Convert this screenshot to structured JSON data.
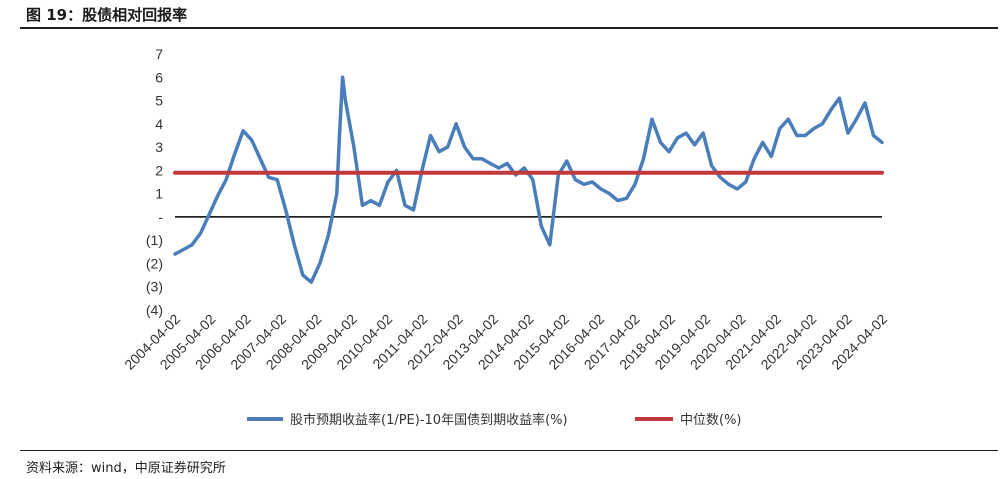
{
  "header": {
    "title": "图 19：股债相对回报率"
  },
  "footer": {
    "source": "资料来源：wind，中原证券研究所"
  },
  "colors": {
    "series_line": "#4a7ebb",
    "median_line": "#c0393b",
    "zero_line": "#000000"
  },
  "chart_data": {
    "type": "line",
    "title": "",
    "xlabel": "",
    "ylabel": "",
    "ylim": [
      -4,
      7
    ],
    "y_ticks": [
      {
        "value": 7,
        "label": "7"
      },
      {
        "value": 6,
        "label": "6"
      },
      {
        "value": 5,
        "label": "5"
      },
      {
        "value": 4,
        "label": "4"
      },
      {
        "value": 3,
        "label": "3"
      },
      {
        "value": 2,
        "label": "2"
      },
      {
        "value": 1,
        "label": "1"
      },
      {
        "value": 0,
        "label": "-"
      },
      {
        "value": -1,
        "label": "(1)"
      },
      {
        "value": -2,
        "label": "(2)"
      },
      {
        "value": -3,
        "label": "(3)"
      },
      {
        "value": -4,
        "label": "(4)"
      }
    ],
    "x_ticks": [
      "2004-04-02",
      "2005-04-02",
      "2006-04-02",
      "2007-04-02",
      "2008-04-02",
      "2009-04-02",
      "2010-04-02",
      "2011-04-02",
      "2012-04-02",
      "2013-04-02",
      "2014-04-02",
      "2015-04-02",
      "2016-04-02",
      "2017-04-02",
      "2018-04-02",
      "2019-04-02",
      "2020-04-02",
      "2021-04-02",
      "2022-04-02",
      "2023-04-02",
      "2024-04-02"
    ],
    "grid": false,
    "legend_position": "bottom",
    "series": [
      {
        "name": "股市预期收益率(1/PE)-10年国债到期收益率(%)",
        "x": [
          2004.0,
          2004.25,
          2004.5,
          2004.75,
          2005.0,
          2005.25,
          2005.5,
          2005.75,
          2006.0,
          2006.25,
          2006.5,
          2006.75,
          2007.0,
          2007.25,
          2007.5,
          2007.75,
          2008.0,
          2008.25,
          2008.5,
          2008.75,
          2008.83,
          2008.92,
          2009.0,
          2009.25,
          2009.5,
          2009.75,
          2010.0,
          2010.25,
          2010.5,
          2010.75,
          2011.0,
          2011.25,
          2011.5,
          2011.75,
          2012.0,
          2012.25,
          2012.5,
          2012.75,
          2013.0,
          2013.25,
          2013.5,
          2013.75,
          2014.0,
          2014.25,
          2014.5,
          2014.75,
          2015.0,
          2015.25,
          2015.5,
          2015.75,
          2016.0,
          2016.25,
          2016.5,
          2016.75,
          2017.0,
          2017.25,
          2017.5,
          2017.75,
          2018.0,
          2018.25,
          2018.5,
          2018.75,
          2019.0,
          2019.25,
          2019.5,
          2019.75,
          2020.0,
          2020.25,
          2020.5,
          2020.75,
          2021.0,
          2021.25,
          2021.5,
          2021.75,
          2022.0,
          2022.25,
          2022.5,
          2022.75,
          2023.0,
          2023.25,
          2023.5,
          2023.75,
          2024.0,
          2024.25,
          2024.5,
          2024.75
        ],
        "values": [
          -1.6,
          -1.4,
          -1.2,
          -0.7,
          0.1,
          0.9,
          1.6,
          2.7,
          3.7,
          3.3,
          2.5,
          1.7,
          1.6,
          0.3,
          -1.2,
          -2.5,
          -2.8,
          -2.0,
          -0.8,
          1.0,
          3.6,
          6.0,
          5.0,
          3.0,
          0.5,
          0.7,
          0.5,
          1.5,
          2.0,
          0.5,
          0.3,
          2.0,
          3.5,
          2.8,
          3.0,
          4.0,
          3.0,
          2.5,
          2.5,
          2.3,
          2.1,
          2.3,
          1.8,
          2.1,
          1.6,
          -0.4,
          -1.2,
          1.8,
          2.4,
          1.6,
          1.4,
          1.5,
          1.2,
          1.0,
          0.7,
          0.8,
          1.4,
          2.5,
          4.2,
          3.2,
          2.8,
          3.4,
          3.6,
          3.1,
          3.6,
          2.2,
          1.7,
          1.4,
          1.2,
          1.5,
          2.5,
          3.2,
          2.6,
          3.8,
          4.2,
          3.5,
          3.5,
          3.8,
          4.0,
          4.6,
          5.1,
          3.6,
          4.2,
          4.9,
          3.5,
          3.2
        ],
        "color": "#4a7ebb"
      },
      {
        "name": "中位数(%)",
        "x": [
          2004.0,
          2024.75
        ],
        "values": [
          1.9,
          1.9
        ],
        "color": "#c0393b"
      }
    ]
  }
}
